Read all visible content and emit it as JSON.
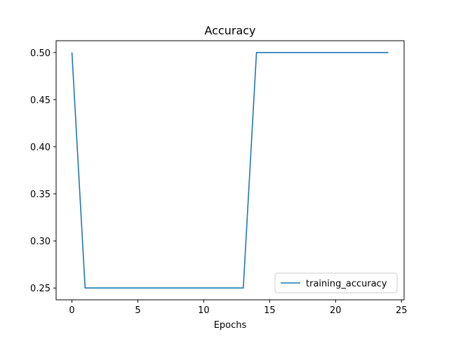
{
  "chart_data": {
    "type": "line",
    "title": "Accuracy",
    "xlabel": "Epochs",
    "ylabel": "",
    "xlim": [
      -1.2,
      25.2
    ],
    "ylim": [
      0.2375,
      0.5125
    ],
    "xticks": [
      0,
      5,
      10,
      15,
      20,
      25
    ],
    "yticks": [
      0.25,
      0.3,
      0.35,
      0.4,
      0.45,
      0.5
    ],
    "xtick_labels": [
      "0",
      "5",
      "10",
      "15",
      "20",
      "25"
    ],
    "ytick_labels": [
      "0.25",
      "0.30",
      "0.35",
      "0.40",
      "0.45",
      "0.50"
    ],
    "grid": false,
    "legend": "lower-right",
    "series": [
      {
        "name": "training_accuracy",
        "color": "#1f77b4",
        "x": [
          0,
          1,
          2,
          3,
          4,
          5,
          6,
          7,
          8,
          9,
          10,
          11,
          12,
          13,
          14,
          15,
          16,
          17,
          18,
          19,
          20,
          21,
          22,
          23,
          24
        ],
        "y": [
          0.5,
          0.25,
          0.25,
          0.25,
          0.25,
          0.25,
          0.25,
          0.25,
          0.25,
          0.25,
          0.25,
          0.25,
          0.25,
          0.25,
          0.5,
          0.5,
          0.5,
          0.5,
          0.5,
          0.5,
          0.5,
          0.5,
          0.5,
          0.5,
          0.5
        ]
      }
    ]
  }
}
